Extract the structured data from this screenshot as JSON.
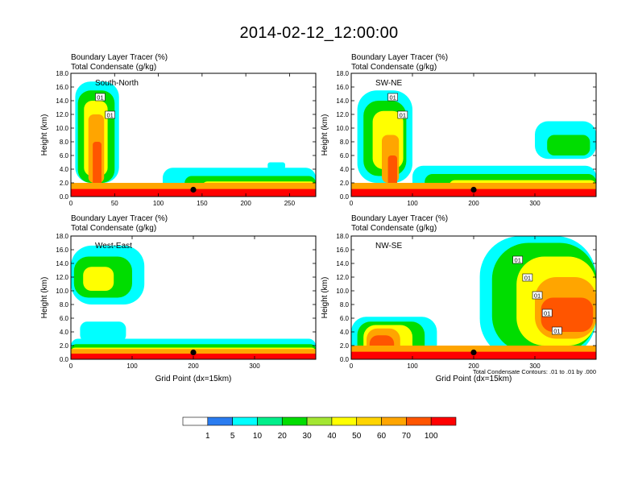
{
  "page": {
    "title": "2014-02-12_12:00:00"
  },
  "panel_header": {
    "line1": "Boundary Layer Tracer    (%)",
    "line2": "Total Condensate    (g/kg)"
  },
  "footnote": "Total Condensate Contours: .01 to .01 by .000",
  "colors": {
    "shading": [
      "#ffffff",
      "#2a7cf0",
      "#00ffff",
      "#00ee8a",
      "#00dd00",
      "#a3e632",
      "#ffff00",
      "#ffd400",
      "#ffa500",
      "#ff5500",
      "#ff0000"
    ],
    "contour": "#000000"
  },
  "colorbar": {
    "labels": [
      "1",
      "5",
      "10",
      "20",
      "30",
      "40",
      "50",
      "60",
      "70",
      "100"
    ]
  },
  "chart_data": [
    {
      "type": "heatmap",
      "title": "South-North",
      "ylabel": "Height (km)",
      "xlabel": "",
      "xlim": [
        0,
        280
      ],
      "ylim": [
        0,
        18
      ],
      "x_ticks": [
        "0",
        "50",
        "100",
        "150",
        "200",
        "250"
      ],
      "y_ticks": [
        "0.0",
        "2.0",
        "4.0",
        "6.0",
        "8.0",
        "10.0",
        "12.0",
        "14.0",
        "16.0",
        "18.0"
      ],
      "contour_labels": [
        "01",
        "01"
      ],
      "marker_x": 140,
      "boundary_layer_top_km": 2.0
    },
    {
      "type": "heatmap",
      "title": "SW-NE",
      "ylabel": "Height (km)",
      "xlabel": "",
      "xlim": [
        0,
        400
      ],
      "ylim": [
        0,
        18
      ],
      "x_ticks": [
        "0",
        "100",
        "200",
        "300"
      ],
      "y_ticks": [
        "0.0",
        "2.0",
        "4.0",
        "6.0",
        "8.0",
        "10.0",
        "12.0",
        "14.0",
        "16.0",
        "18.0"
      ],
      "contour_labels": [
        "01",
        "01"
      ],
      "marker_x": 200,
      "boundary_layer_top_km": 2.0
    },
    {
      "type": "heatmap",
      "title": "West-East",
      "ylabel": "Height (km)",
      "xlabel": "Grid Point (dx=15km)",
      "xlim": [
        0,
        400
      ],
      "ylim": [
        0,
        18
      ],
      "x_ticks": [
        "0",
        "100",
        "200",
        "300"
      ],
      "y_ticks": [
        "0.0",
        "2.0",
        "4.0",
        "6.0",
        "8.0",
        "10.0",
        "12.0",
        "14.0",
        "16.0",
        "18.0"
      ],
      "contour_labels": [],
      "marker_x": 200,
      "boundary_layer_top_km": 1.5
    },
    {
      "type": "heatmap",
      "title": "NW-SE",
      "ylabel": "Height (km)",
      "xlabel": "Grid Point (dx=15km)",
      "xlim": [
        0,
        400
      ],
      "ylim": [
        0,
        18
      ],
      "x_ticks": [
        "0",
        "100",
        "200",
        "300"
      ],
      "y_ticks": [
        "0.0",
        "2.0",
        "4.0",
        "6.0",
        "8.0",
        "10.0",
        "12.0",
        "14.0",
        "16.0",
        "18.0"
      ],
      "contour_labels": [
        "01",
        "01",
        "01",
        "01",
        "01"
      ],
      "marker_x": 200,
      "boundary_layer_top_km": 2.0
    }
  ]
}
